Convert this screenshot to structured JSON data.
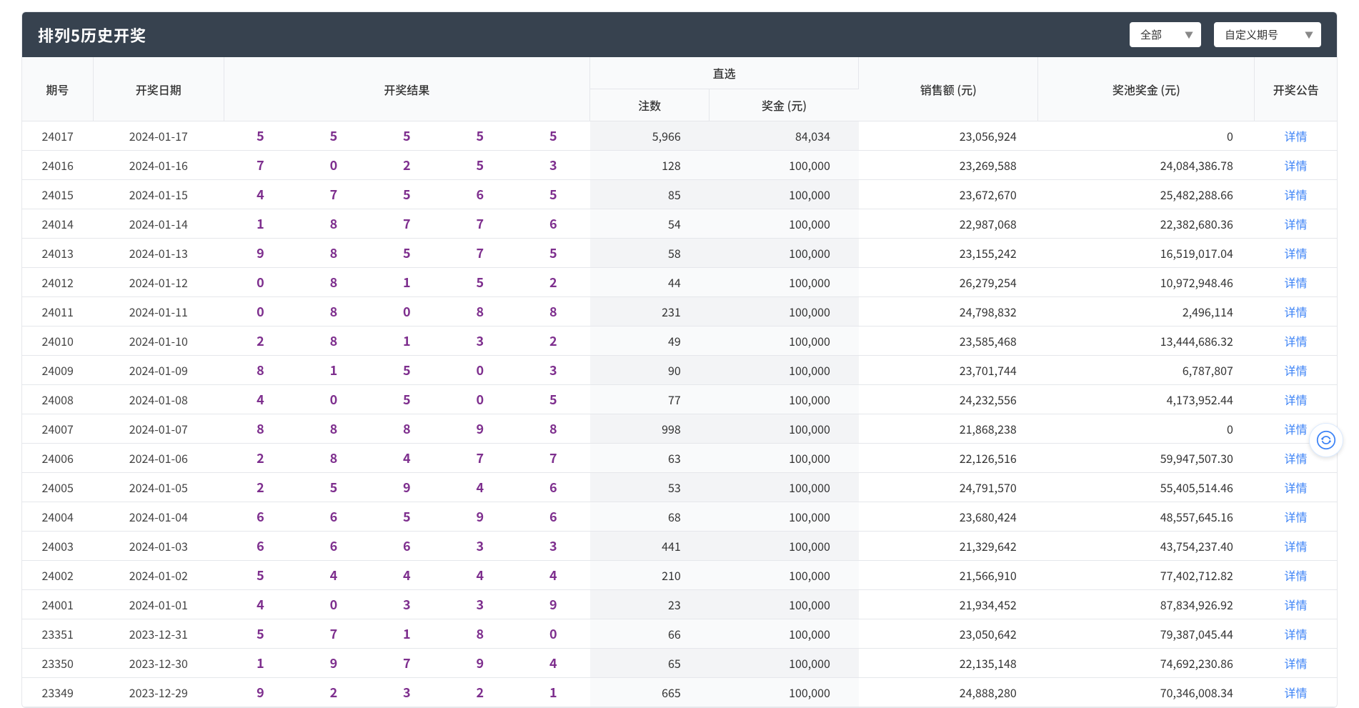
{
  "header": {
    "title": "排列5历史开奖",
    "select_all": "全部",
    "select_custom": "自定义期号"
  },
  "columns": {
    "issue": "期号",
    "date": "开奖日期",
    "result": "开奖结果",
    "zhixuan": "直选",
    "count": "注数",
    "prize": "奖金 (元)",
    "sales": "销售额 (元)",
    "pool": "奖池奖金 (元)",
    "announce": "开奖公告"
  },
  "detail_label": "详情",
  "rows": [
    {
      "issue": "24017",
      "date": "2024-01-17",
      "n": [
        "5",
        "5",
        "5",
        "5",
        "5"
      ],
      "count": "5,966",
      "prize": "84,034",
      "sales": "23,056,924",
      "pool": "0"
    },
    {
      "issue": "24016",
      "date": "2024-01-16",
      "n": [
        "7",
        "0",
        "2",
        "5",
        "3"
      ],
      "count": "128",
      "prize": "100,000",
      "sales": "23,269,588",
      "pool": "24,084,386.78"
    },
    {
      "issue": "24015",
      "date": "2024-01-15",
      "n": [
        "4",
        "7",
        "5",
        "6",
        "5"
      ],
      "count": "85",
      "prize": "100,000",
      "sales": "23,672,670",
      "pool": "25,482,288.66"
    },
    {
      "issue": "24014",
      "date": "2024-01-14",
      "n": [
        "1",
        "8",
        "7",
        "7",
        "6"
      ],
      "count": "54",
      "prize": "100,000",
      "sales": "22,987,068",
      "pool": "22,382,680.36"
    },
    {
      "issue": "24013",
      "date": "2024-01-13",
      "n": [
        "9",
        "8",
        "5",
        "7",
        "5"
      ],
      "count": "58",
      "prize": "100,000",
      "sales": "23,155,242",
      "pool": "16,519,017.04"
    },
    {
      "issue": "24012",
      "date": "2024-01-12",
      "n": [
        "0",
        "8",
        "1",
        "5",
        "2"
      ],
      "count": "44",
      "prize": "100,000",
      "sales": "26,279,254",
      "pool": "10,972,948.46"
    },
    {
      "issue": "24011",
      "date": "2024-01-11",
      "n": [
        "0",
        "8",
        "0",
        "8",
        "8"
      ],
      "count": "231",
      "prize": "100,000",
      "sales": "24,798,832",
      "pool": "2,496,114"
    },
    {
      "issue": "24010",
      "date": "2024-01-10",
      "n": [
        "2",
        "8",
        "1",
        "3",
        "2"
      ],
      "count": "49",
      "prize": "100,000",
      "sales": "23,585,468",
      "pool": "13,444,686.32"
    },
    {
      "issue": "24009",
      "date": "2024-01-09",
      "n": [
        "8",
        "1",
        "5",
        "0",
        "3"
      ],
      "count": "90",
      "prize": "100,000",
      "sales": "23,701,744",
      "pool": "6,787,807"
    },
    {
      "issue": "24008",
      "date": "2024-01-08",
      "n": [
        "4",
        "0",
        "5",
        "0",
        "5"
      ],
      "count": "77",
      "prize": "100,000",
      "sales": "24,232,556",
      "pool": "4,173,952.44"
    },
    {
      "issue": "24007",
      "date": "2024-01-07",
      "n": [
        "8",
        "8",
        "8",
        "9",
        "8"
      ],
      "count": "998",
      "prize": "100,000",
      "sales": "21,868,238",
      "pool": "0"
    },
    {
      "issue": "24006",
      "date": "2024-01-06",
      "n": [
        "2",
        "8",
        "4",
        "7",
        "7"
      ],
      "count": "63",
      "prize": "100,000",
      "sales": "22,126,516",
      "pool": "59,947,507.30"
    },
    {
      "issue": "24005",
      "date": "2024-01-05",
      "n": [
        "2",
        "5",
        "9",
        "4",
        "6"
      ],
      "count": "53",
      "prize": "100,000",
      "sales": "24,791,570",
      "pool": "55,405,514.46"
    },
    {
      "issue": "24004",
      "date": "2024-01-04",
      "n": [
        "6",
        "6",
        "5",
        "9",
        "6"
      ],
      "count": "68",
      "prize": "100,000",
      "sales": "23,680,424",
      "pool": "48,557,645.16"
    },
    {
      "issue": "24003",
      "date": "2024-01-03",
      "n": [
        "6",
        "6",
        "6",
        "3",
        "3"
      ],
      "count": "441",
      "prize": "100,000",
      "sales": "21,329,642",
      "pool": "43,754,237.40"
    },
    {
      "issue": "24002",
      "date": "2024-01-02",
      "n": [
        "5",
        "4",
        "4",
        "4",
        "4"
      ],
      "count": "210",
      "prize": "100,000",
      "sales": "21,566,910",
      "pool": "77,402,712.82"
    },
    {
      "issue": "24001",
      "date": "2024-01-01",
      "n": [
        "4",
        "0",
        "3",
        "3",
        "9"
      ],
      "count": "23",
      "prize": "100,000",
      "sales": "21,934,452",
      "pool": "87,834,926.92"
    },
    {
      "issue": "23351",
      "date": "2023-12-31",
      "n": [
        "5",
        "7",
        "1",
        "8",
        "0"
      ],
      "count": "66",
      "prize": "100,000",
      "sales": "23,050,642",
      "pool": "79,387,045.44"
    },
    {
      "issue": "23350",
      "date": "2023-12-30",
      "n": [
        "1",
        "9",
        "7",
        "9",
        "4"
      ],
      "count": "65",
      "prize": "100,000",
      "sales": "22,135,148",
      "pool": "74,692,230.86"
    },
    {
      "issue": "23349",
      "date": "2023-12-29",
      "n": [
        "9",
        "2",
        "3",
        "2",
        "1"
      ],
      "count": "665",
      "prize": "100,000",
      "sales": "24,888,280",
      "pool": "70,346,008.34"
    }
  ]
}
